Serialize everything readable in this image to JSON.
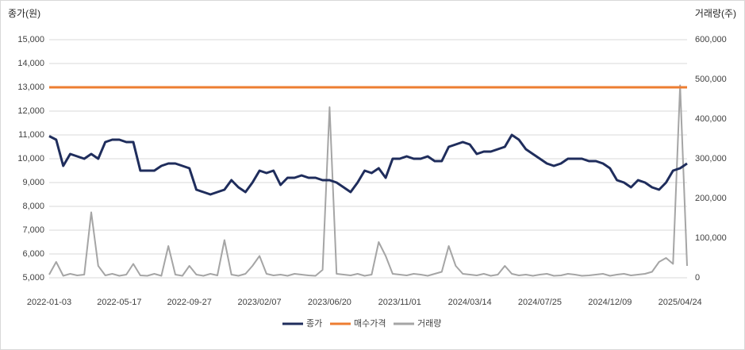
{
  "chart_data": {
    "type": "line",
    "y_axis_title": "종가(원)",
    "y2_axis_title": "거래량(주)",
    "categories": [
      "2022-01-03",
      null,
      null,
      null,
      null,
      null,
      null,
      null,
      null,
      null,
      "2022-05-17",
      null,
      null,
      null,
      null,
      null,
      null,
      null,
      null,
      null,
      "2022-09-27",
      null,
      null,
      null,
      null,
      null,
      null,
      null,
      null,
      null,
      "2023/02/07",
      null,
      null,
      null,
      null,
      null,
      null,
      null,
      null,
      null,
      "2023/06/20",
      null,
      null,
      null,
      null,
      null,
      null,
      null,
      null,
      null,
      "2023/11/01",
      null,
      null,
      null,
      null,
      null,
      null,
      null,
      null,
      null,
      "2024/03/14",
      null,
      null,
      null,
      null,
      null,
      null,
      null,
      null,
      null,
      "2024/07/25",
      null,
      null,
      null,
      null,
      null,
      null,
      null,
      null,
      null,
      "2024/12/09",
      null,
      null,
      null,
      null,
      null,
      null,
      null,
      null,
      null,
      "2025/04/24",
      null
    ],
    "series": [
      {
        "name": "종가",
        "color": "#1f2d5c",
        "values": [
          10950,
          10800,
          9700,
          10200,
          10100,
          10000,
          10200,
          10000,
          10700,
          10800,
          10800,
          10700,
          10700,
          9500,
          9500,
          9500,
          9700,
          9800,
          9800,
          9700,
          9600,
          8700,
          8600,
          8500,
          8600,
          8700,
          9100,
          8800,
          8600,
          9000,
          9500,
          9400,
          9500,
          8900,
          9200,
          9200,
          9300,
          9200,
          9200,
          9100,
          9100,
          9000,
          8800,
          8600,
          9000,
          9500,
          9400,
          9600,
          9200,
          10000,
          10000,
          10100,
          10000,
          10000,
          10100,
          9900,
          9900,
          10500,
          10600,
          10700,
          10600,
          10200,
          10300,
          10300,
          10400,
          10500,
          11000,
          10800,
          10400,
          10200,
          10000,
          9800,
          9700,
          9800,
          10000,
          10000,
          10000,
          9900,
          9900,
          9800,
          9600,
          9100,
          9000,
          8800,
          9100,
          9000,
          8800,
          8700,
          9000,
          9500,
          9600,
          9800
        ]
      },
      {
        "name": "매수가격",
        "color": "#ed7d31",
        "values": [
          13000,
          13000,
          13000,
          13000,
          13000,
          13000,
          13000,
          13000,
          13000,
          13000,
          13000,
          13000,
          13000,
          13000,
          13000,
          13000,
          13000,
          13000,
          13000,
          13000,
          13000,
          13000,
          13000,
          13000,
          13000,
          13000,
          13000,
          13000,
          13000,
          13000,
          13000,
          13000,
          13000,
          13000,
          13000,
          13000,
          13000,
          13000,
          13000,
          13000,
          13000,
          13000,
          13000,
          13000,
          13000,
          13000,
          13000,
          13000,
          13000,
          13000,
          13000,
          13000,
          13000,
          13000,
          13000,
          13000,
          13000,
          13000,
          13000,
          13000,
          13000,
          13000,
          13000,
          13000,
          13000,
          13000,
          13000,
          13000,
          13000,
          13000,
          13000,
          13000,
          13000,
          13000,
          13000,
          13000,
          13000,
          13000,
          13000,
          13000,
          13000,
          13000,
          13000,
          13000,
          13000,
          13000,
          13000,
          13000,
          13000,
          13000,
          13000,
          13000
        ]
      },
      {
        "name": "거래량",
        "color": "#a5a5a5",
        "axis": "y2",
        "values": [
          8000,
          40000,
          5000,
          10000,
          6000,
          8000,
          165000,
          30000,
          6000,
          10000,
          5000,
          8000,
          35000,
          6000,
          5000,
          10000,
          5000,
          80000,
          8000,
          5000,
          30000,
          8000,
          5000,
          10000,
          6000,
          95000,
          8000,
          5000,
          10000,
          30000,
          55000,
          10000,
          6000,
          8000,
          5000,
          10000,
          8000,
          6000,
          5000,
          20000,
          430000,
          10000,
          8000,
          6000,
          10000,
          5000,
          8000,
          90000,
          55000,
          10000,
          8000,
          6000,
          10000,
          8000,
          5000,
          10000,
          15000,
          80000,
          30000,
          10000,
          8000,
          6000,
          10000,
          5000,
          8000,
          30000,
          10000,
          6000,
          8000,
          5000,
          8000,
          10000,
          5000,
          6000,
          10000,
          8000,
          5000,
          6000,
          8000,
          10000,
          5000,
          8000,
          10000,
          6000,
          8000,
          10000,
          15000,
          40000,
          50000,
          35000,
          485000,
          30000
        ]
      }
    ],
    "ylim": [
      5000,
      15000
    ],
    "yticks": [
      {
        "value": 5000,
        "label": "5,000"
      },
      {
        "value": 6000,
        "label": "6,000"
      },
      {
        "value": 7000,
        "label": "7,000"
      },
      {
        "value": 8000,
        "label": "8,000"
      },
      {
        "value": 9000,
        "label": "9,000"
      },
      {
        "value": 10000,
        "label": "10,000"
      },
      {
        "value": 11000,
        "label": "11,000"
      },
      {
        "value": 12000,
        "label": "12,000"
      },
      {
        "value": 13000,
        "label": "13,000"
      },
      {
        "value": 14000,
        "label": "14,000"
      },
      {
        "value": 15000,
        "label": "15,000"
      }
    ],
    "y2lim": [
      0,
      600000
    ],
    "y2ticks": [
      0,
      {
        "value": 100000,
        "label": "100,000"
      },
      {
        "value": 200000,
        "label": "200,000"
      },
      {
        "value": 300000,
        "label": "300,000"
      },
      {
        "value": 400000,
        "label": "400,000"
      },
      {
        "value": 500000,
        "label": "500,000"
      },
      {
        "value": 600000,
        "label": "600,000"
      }
    ],
    "grid": true,
    "legend": "bottom"
  }
}
